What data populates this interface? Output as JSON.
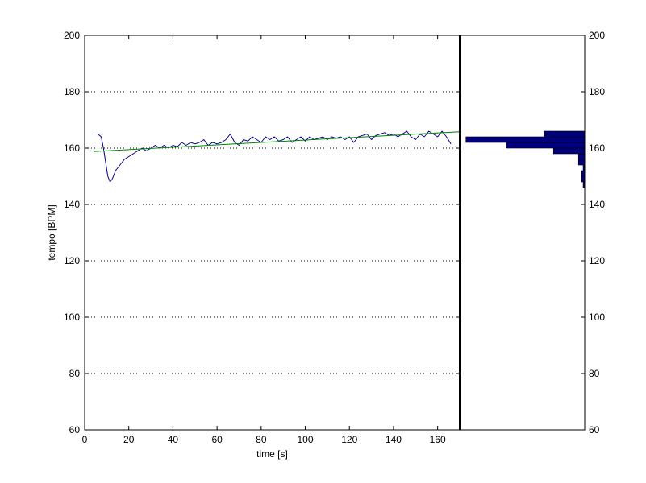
{
  "chart_data": [
    {
      "type": "line",
      "title": "",
      "xlabel": "time [s]",
      "ylabel": "tempo [BPM]",
      "xlim": [
        0,
        170
      ],
      "ylim": [
        60,
        200
      ],
      "x_ticks": [
        "0",
        "20",
        "40",
        "60",
        "80",
        "100",
        "120",
        "140",
        "160"
      ],
      "y_ticks": [
        "60",
        "80",
        "100",
        "120",
        "140",
        "160",
        "180",
        "200"
      ],
      "grid": "horizontal dotted",
      "series": [
        {
          "color": "#00008b",
          "x": [
            4,
            6,
            7.5,
            8.5,
            9.5,
            10.5,
            11.5,
            12.5,
            14,
            16,
            18,
            20,
            22,
            24,
            26,
            28,
            30,
            32,
            34,
            36,
            38,
            40,
            42,
            44,
            46,
            48,
            50,
            52,
            54,
            56,
            58,
            60,
            62,
            64,
            66,
            68,
            70,
            72,
            74,
            76,
            78,
            80,
            82,
            84,
            86,
            88,
            90,
            92,
            94,
            96,
            98,
            100,
            102,
            104,
            106,
            108,
            110,
            112,
            114,
            116,
            118,
            120,
            122,
            124,
            126,
            128,
            130,
            132,
            134,
            136,
            138,
            140,
            142,
            144,
            146,
            148,
            150,
            152,
            154,
            156,
            158,
            160,
            162,
            164,
            166
          ],
          "y": [
            165,
            165,
            164,
            160,
            155,
            150,
            148,
            149,
            152,
            154,
            156,
            157,
            158,
            159,
            160,
            159,
            160,
            161,
            160,
            161,
            160,
            161,
            160.5,
            162,
            161,
            162,
            161.5,
            162,
            163,
            161,
            162,
            161.5,
            162,
            163,
            165,
            162,
            161,
            163,
            162.5,
            164,
            163,
            162,
            164,
            163,
            164,
            162.5,
            163,
            164,
            162,
            163,
            164,
            162.5,
            164,
            163,
            163.5,
            164,
            163,
            164,
            163.5,
            164,
            163,
            164,
            162,
            164,
            164.5,
            165,
            163,
            164.5,
            165,
            165.5,
            164.5,
            165,
            164,
            165,
            166,
            164,
            163,
            165,
            164,
            166,
            165,
            164,
            166,
            164,
            161.5
          ]
        },
        {
          "color": "#008000",
          "x": [
            4,
            170
          ],
          "y": [
            158.8,
            165.8
          ]
        }
      ]
    },
    {
      "type": "bar",
      "orientation": "horizontal",
      "title": "",
      "xlabel": "",
      "ylabel": "",
      "ylim": [
        60,
        200
      ],
      "y_ticks": [
        "60",
        "80",
        "100",
        "120",
        "140",
        "160",
        "180",
        "200"
      ],
      "color": "#00007f",
      "bin_width": 2,
      "bins": [
        147,
        149,
        151,
        153,
        155,
        157,
        159,
        161,
        163,
        165
      ],
      "values": [
        0.5,
        1,
        1,
        0.5,
        2,
        2,
        10,
        25,
        38,
        13
      ]
    }
  ]
}
